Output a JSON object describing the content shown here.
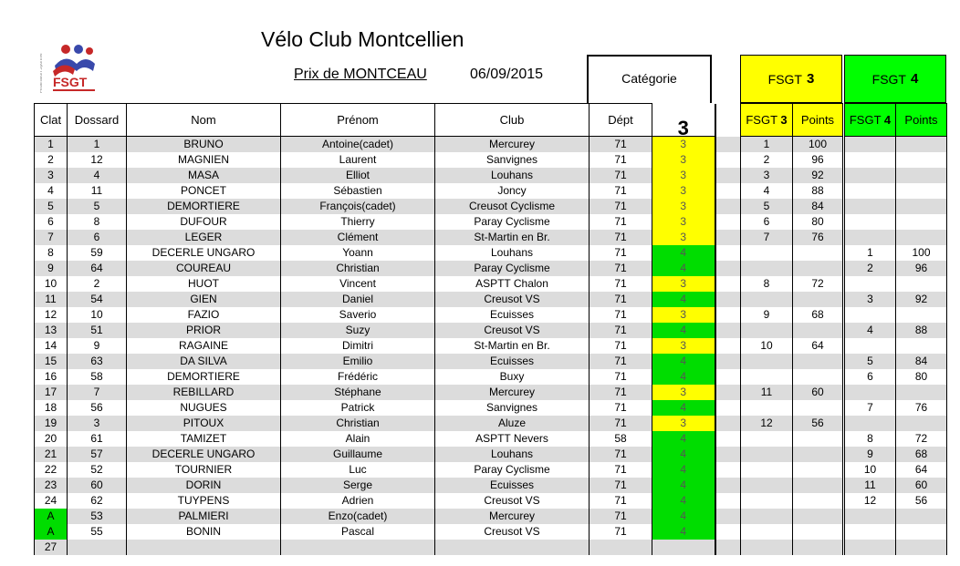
{
  "header": {
    "club_title": "Vélo Club Montcellien",
    "prix": "Prix de MONTCEAU",
    "date": "06/09/2015",
    "categorie_label": "Catégorie",
    "categorie_value": "3",
    "fsgt3_label": "FSGT",
    "fsgt3_num": "3",
    "fsgt4_label": "FSGT",
    "fsgt4_num": "4",
    "logo_text": "FSGT"
  },
  "columns": {
    "clat": "Clat",
    "dossard": "Dossard",
    "nom": "Nom",
    "prenom": "Prénom",
    "club": "Club",
    "dept": "Dépt",
    "fsgt3": "FSGT",
    "fsgt3_num": "3",
    "points3": "Points",
    "fsgt4": "FSGT",
    "fsgt4_num": "4",
    "points4": "Points"
  },
  "colors": {
    "cat3": "#ffff00",
    "cat4": "#00dd00",
    "row_alt": "#dcdcdc"
  },
  "rows": [
    {
      "clat": "1",
      "dossard": "1",
      "nom": "BRUNO",
      "prenom": "Antoine(cadet)",
      "club": "Mercurey",
      "dept": "71",
      "cat": "3",
      "r3": "1",
      "p3": "100",
      "r4": "",
      "p4": ""
    },
    {
      "clat": "2",
      "dossard": "12",
      "nom": "MAGNIEN",
      "prenom": "Laurent",
      "club": "Sanvignes",
      "dept": "71",
      "cat": "3",
      "r3": "2",
      "p3": "96",
      "r4": "",
      "p4": ""
    },
    {
      "clat": "3",
      "dossard": "4",
      "nom": "MASA",
      "prenom": "Elliot",
      "club": "Louhans",
      "dept": "71",
      "cat": "3",
      "r3": "3",
      "p3": "92",
      "r4": "",
      "p4": ""
    },
    {
      "clat": "4",
      "dossard": "11",
      "nom": "PONCET",
      "prenom": "Sébastien",
      "club": "Joncy",
      "dept": "71",
      "cat": "3",
      "r3": "4",
      "p3": "88",
      "r4": "",
      "p4": ""
    },
    {
      "clat": "5",
      "dossard": "5",
      "nom": "DEMORTIERE",
      "prenom": "François(cadet)",
      "club": "Creusot Cyclisme",
      "dept": "71",
      "cat": "3",
      "r3": "5",
      "p3": "84",
      "r4": "",
      "p4": ""
    },
    {
      "clat": "6",
      "dossard": "8",
      "nom": "DUFOUR",
      "prenom": "Thierry",
      "club": "Paray Cyclisme",
      "dept": "71",
      "cat": "3",
      "r3": "6",
      "p3": "80",
      "r4": "",
      "p4": ""
    },
    {
      "clat": "7",
      "dossard": "6",
      "nom": "LEGER",
      "prenom": "Clément",
      "club": "St-Martin en Br.",
      "dept": "71",
      "cat": "3",
      "r3": "7",
      "p3": "76",
      "r4": "",
      "p4": ""
    },
    {
      "clat": "8",
      "dossard": "59",
      "nom": "DECERLE UNGARO",
      "prenom": "Yoann",
      "club": "Louhans",
      "dept": "71",
      "cat": "4",
      "r3": "",
      "p3": "",
      "r4": "1",
      "p4": "100"
    },
    {
      "clat": "9",
      "dossard": "64",
      "nom": "COUREAU",
      "prenom": "Christian",
      "club": "Paray Cyclisme",
      "dept": "71",
      "cat": "4",
      "r3": "",
      "p3": "",
      "r4": "2",
      "p4": "96"
    },
    {
      "clat": "10",
      "dossard": "2",
      "nom": "HUOT",
      "prenom": "Vincent",
      "club": "ASPTT Chalon",
      "dept": "71",
      "cat": "3",
      "r3": "8",
      "p3": "72",
      "r4": "",
      "p4": ""
    },
    {
      "clat": "11",
      "dossard": "54",
      "nom": "GIEN",
      "prenom": "Daniel",
      "club": "Creusot VS",
      "dept": "71",
      "cat": "4",
      "r3": "",
      "p3": "",
      "r4": "3",
      "p4": "92"
    },
    {
      "clat": "12",
      "dossard": "10",
      "nom": "FAZIO",
      "prenom": "Saverio",
      "club": "Ecuisses",
      "dept": "71",
      "cat": "3",
      "r3": "9",
      "p3": "68",
      "r4": "",
      "p4": ""
    },
    {
      "clat": "13",
      "dossard": "51",
      "nom": "PRIOR",
      "prenom": "Suzy",
      "club": "Creusot VS",
      "dept": "71",
      "cat": "4",
      "r3": "",
      "p3": "",
      "r4": "4",
      "p4": "88"
    },
    {
      "clat": "14",
      "dossard": "9",
      "nom": "RAGAINE",
      "prenom": "Dimitri",
      "club": "St-Martin en Br.",
      "dept": "71",
      "cat": "3",
      "r3": "10",
      "p3": "64",
      "r4": "",
      "p4": ""
    },
    {
      "clat": "15",
      "dossard": "63",
      "nom": "DA SILVA",
      "prenom": "Emilio",
      "club": "Ecuisses",
      "dept": "71",
      "cat": "4",
      "r3": "",
      "p3": "",
      "r4": "5",
      "p4": "84"
    },
    {
      "clat": "16",
      "dossard": "58",
      "nom": "DEMORTIERE",
      "prenom": "Frédéric",
      "club": "Buxy",
      "dept": "71",
      "cat": "4",
      "r3": "",
      "p3": "",
      "r4": "6",
      "p4": "80"
    },
    {
      "clat": "17",
      "dossard": "7",
      "nom": "REBILLARD",
      "prenom": "Stéphane",
      "club": "Mercurey",
      "dept": "71",
      "cat": "3",
      "r3": "11",
      "p3": "60",
      "r4": "",
      "p4": ""
    },
    {
      "clat": "18",
      "dossard": "56",
      "nom": "NUGUES",
      "prenom": "Patrick",
      "club": "Sanvignes",
      "dept": "71",
      "cat": "4",
      "r3": "",
      "p3": "",
      "r4": "7",
      "p4": "76"
    },
    {
      "clat": "19",
      "dossard": "3",
      "nom": "PITOUX",
      "prenom": "Christian",
      "club": "Aluze",
      "dept": "71",
      "cat": "3",
      "r3": "12",
      "p3": "56",
      "r4": "",
      "p4": ""
    },
    {
      "clat": "20",
      "dossard": "61",
      "nom": "TAMIZET",
      "prenom": "Alain",
      "club": "ASPTT Nevers",
      "dept": "58",
      "cat": "4",
      "r3": "",
      "p3": "",
      "r4": "8",
      "p4": "72"
    },
    {
      "clat": "21",
      "dossard": "57",
      "nom": "DECERLE UNGARO",
      "prenom": "Guillaume",
      "club": "Louhans",
      "dept": "71",
      "cat": "4",
      "r3": "",
      "p3": "",
      "r4": "9",
      "p4": "68"
    },
    {
      "clat": "22",
      "dossard": "52",
      "nom": "TOURNIER",
      "prenom": "Luc",
      "club": "Paray Cyclisme",
      "dept": "71",
      "cat": "4",
      "r3": "",
      "p3": "",
      "r4": "10",
      "p4": "64"
    },
    {
      "clat": "23",
      "dossard": "60",
      "nom": "DORIN",
      "prenom": "Serge",
      "club": "Ecuisses",
      "dept": "71",
      "cat": "4",
      "r3": "",
      "p3": "",
      "r4": "11",
      "p4": "60"
    },
    {
      "clat": "24",
      "dossard": "62",
      "nom": "TUYPENS",
      "prenom": "Adrien",
      "club": "Creusot VS",
      "dept": "71",
      "cat": "4",
      "r3": "",
      "p3": "",
      "r4": "12",
      "p4": "56"
    },
    {
      "clat": "A",
      "dossard": "53",
      "nom": "PALMIERI",
      "prenom": "Enzo(cadet)",
      "club": "Mercurey",
      "dept": "71",
      "cat": "4",
      "r3": "",
      "p3": "",
      "r4": "",
      "p4": ""
    },
    {
      "clat": "A",
      "dossard": "55",
      "nom": "BONIN",
      "prenom": "Pascal",
      "club": "Creusot VS",
      "dept": "71",
      "cat": "4",
      "r3": "",
      "p3": "",
      "r4": "",
      "p4": ""
    },
    {
      "clat": "27",
      "dossard": "",
      "nom": "",
      "prenom": "",
      "club": "",
      "dept": "",
      "cat": "",
      "r3": "",
      "p3": "",
      "r4": "",
      "p4": ""
    }
  ]
}
